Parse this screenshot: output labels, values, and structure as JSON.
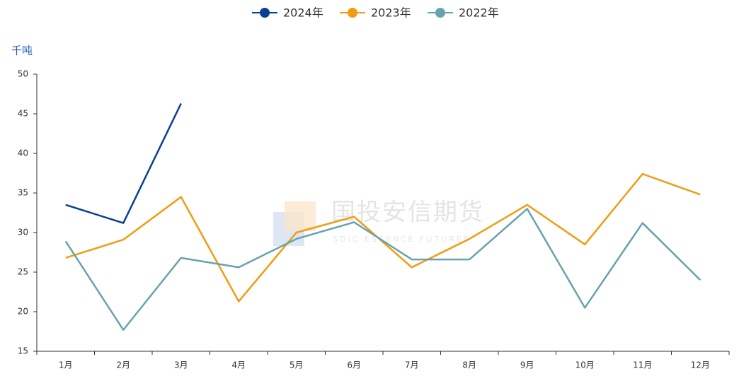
{
  "chart_data": {
    "type": "line",
    "unit_label": "千吨",
    "watermark": {
      "title": "国投安信期货",
      "subtitle": "SDIC ESSENCE FUTURES"
    },
    "categories": [
      "1月",
      "2月",
      "3月",
      "4月",
      "5月",
      "6月",
      "7月",
      "8月",
      "9月",
      "10月",
      "11月",
      "12月"
    ],
    "series": [
      {
        "name": "2024年",
        "color": "#0b3f94",
        "values": [
          33.5,
          31.2,
          46.3,
          null,
          null,
          null,
          null,
          null,
          null,
          null,
          null,
          null
        ]
      },
      {
        "name": "2023年",
        "color": "#f29b11",
        "values": [
          26.8,
          29.1,
          34.5,
          21.3,
          30.0,
          32.0,
          25.6,
          29.2,
          33.5,
          28.5,
          37.4,
          34.8
        ]
      },
      {
        "name": "2022年",
        "color": "#67a3ac",
        "values": [
          28.9,
          17.7,
          26.8,
          25.6,
          29.2,
          31.3,
          26.6,
          26.6,
          33.0,
          20.5,
          31.2,
          24.0
        ]
      }
    ],
    "ylim": [
      15,
      50
    ],
    "yticks": [
      15,
      20,
      25,
      30,
      35,
      40,
      45,
      50
    ]
  }
}
